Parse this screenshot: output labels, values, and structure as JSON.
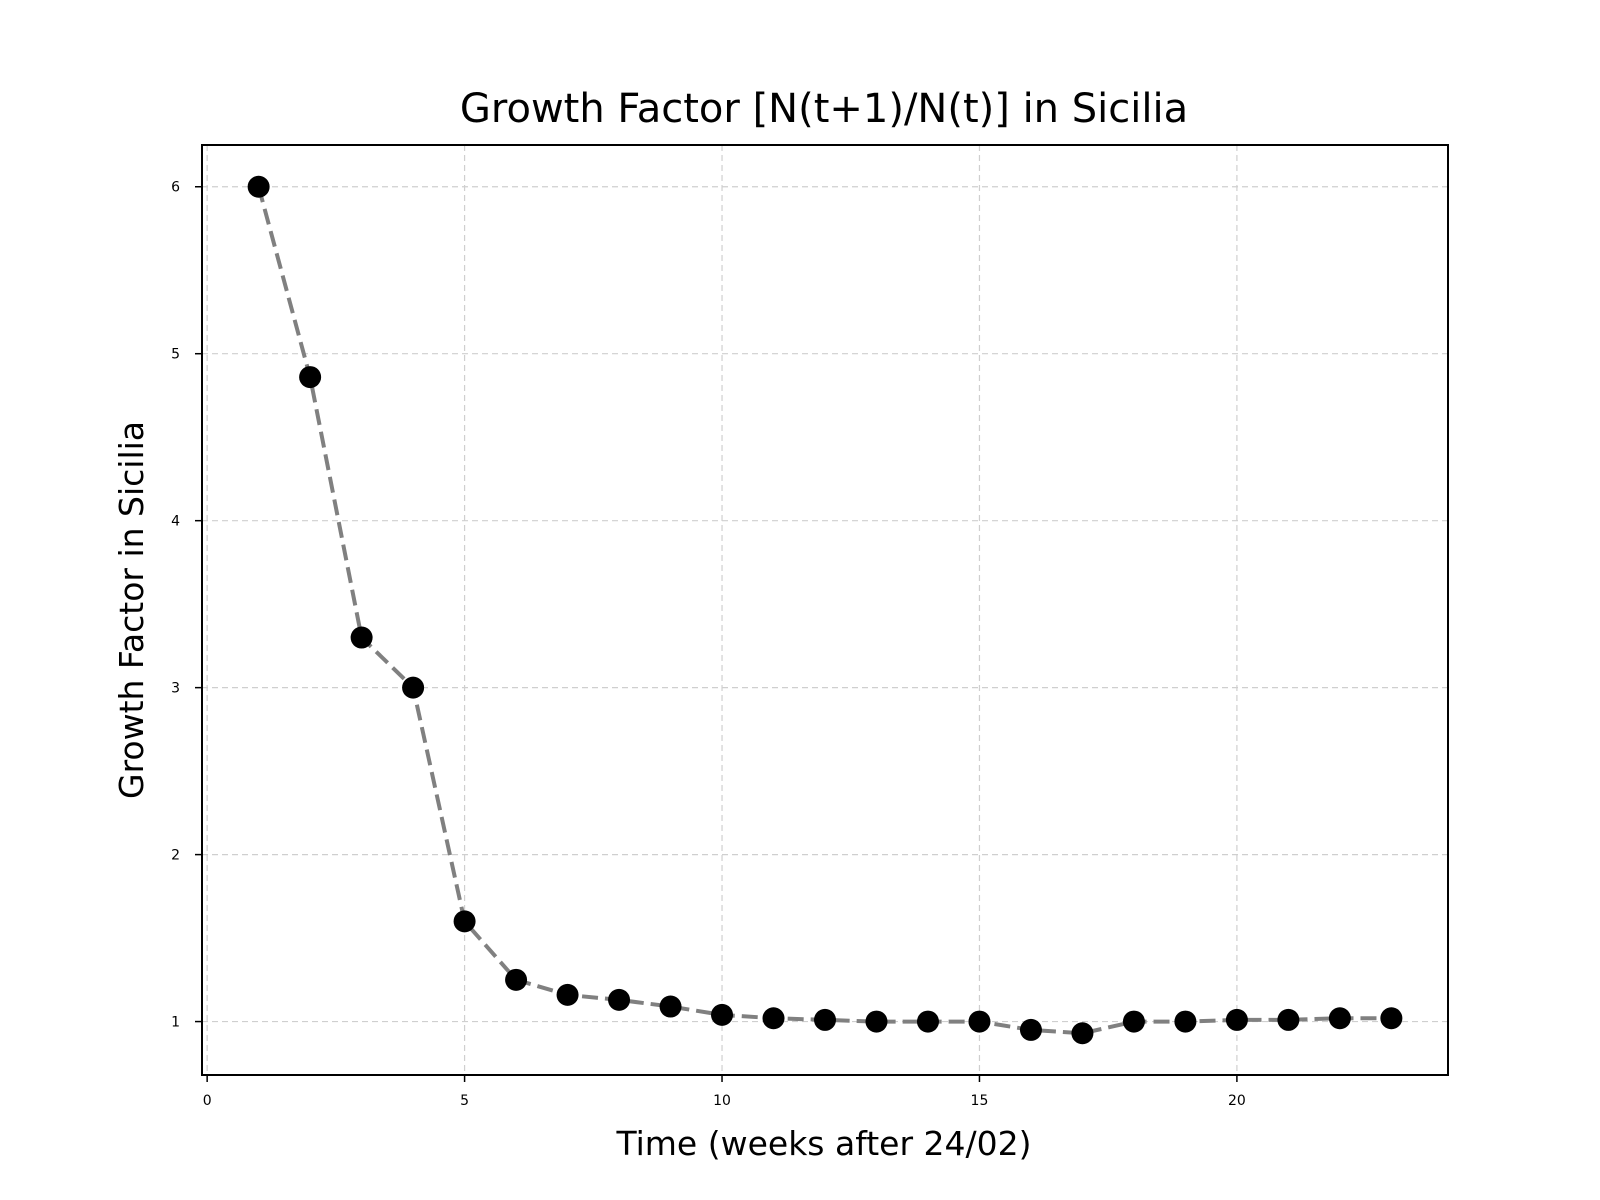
{
  "chart_data": {
    "type": "line",
    "title": "Growth Factor [N(t+1)/N(t)] in Sicilia",
    "xlabel": "Time (weeks after 24/02)",
    "ylabel": "Growth Factor in Sicilia",
    "xlim": [
      -0.1,
      24.1
    ],
    "ylim": [
      0.68,
      6.25
    ],
    "xticks": [
      0,
      5,
      10,
      15,
      20
    ],
    "yticks": [
      1,
      2,
      3,
      4,
      5,
      6
    ],
    "grid": true,
    "line_color": "#808080",
    "line_style": "dashed",
    "marker_color": "#000000",
    "x": [
      1,
      2,
      3,
      4,
      5,
      6,
      7,
      8,
      9,
      10,
      11,
      12,
      13,
      14,
      15,
      16,
      17,
      18,
      19,
      20,
      21,
      22,
      23
    ],
    "y": [
      6.0,
      4.86,
      3.3,
      3.0,
      1.6,
      1.25,
      1.16,
      1.13,
      1.09,
      1.04,
      1.02,
      1.01,
      1.0,
      1.0,
      1.0,
      0.95,
      0.93,
      1.0,
      1.0,
      1.01,
      1.01,
      1.02,
      1.02
    ]
  }
}
